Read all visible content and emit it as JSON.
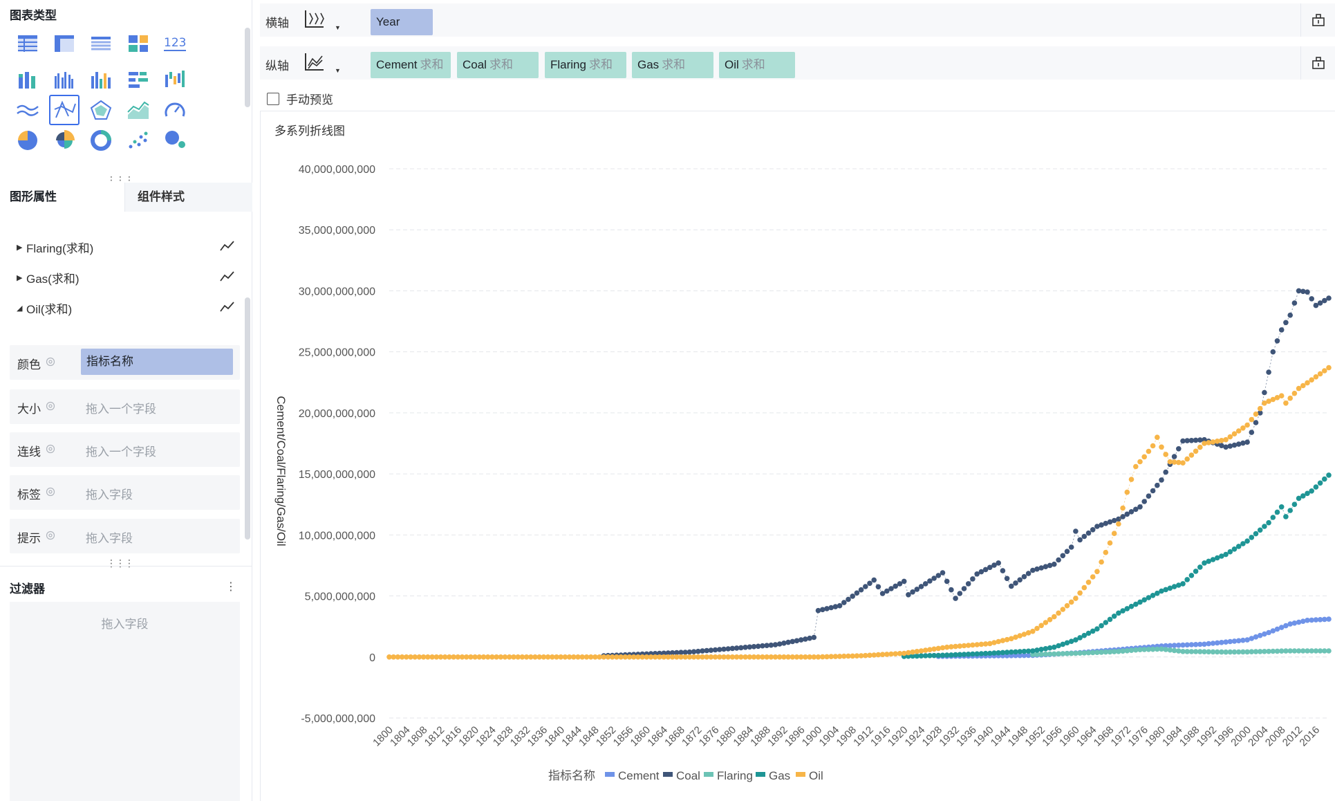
{
  "left": {
    "chart_type_title": "图表类型",
    "chart_types": [
      "table-icon",
      "cross-table-icon",
      "detail-table-icon",
      "dashboard-tiles-icon",
      "kpi-number-icon",
      "stacked-column-icon",
      "grouped-column-icon",
      "column-icon",
      "stacked-bar-icon",
      "waterfall-icon",
      "area-line-icon",
      "line-chart-icon",
      "radar-icon",
      "area-chart-icon",
      "gauge-icon",
      "pie-icon",
      "rose-pie-icon",
      "donut-icon",
      "scatter-icon",
      "bubble-icon"
    ],
    "active_type": "line-chart-icon",
    "tabs": [
      "图形属性",
      "组件样式"
    ],
    "series": [
      {
        "label": "Flaring(求和)",
        "expanded": false
      },
      {
        "label": "Gas(求和)",
        "expanded": false
      },
      {
        "label": "Oil(求和)",
        "expanded": true
      }
    ],
    "props": [
      {
        "label": "颜色",
        "value": "指标名称",
        "filled": true
      },
      {
        "label": "大小",
        "value": "拖入一个字段",
        "filled": false
      },
      {
        "label": "连线",
        "value": "拖入一个字段",
        "filled": false
      },
      {
        "label": "标签",
        "value": "拖入字段",
        "filled": false
      },
      {
        "label": "提示",
        "value": "拖入字段",
        "filled": false
      }
    ],
    "filter_title": "过滤器",
    "filter_hint": "拖入字段"
  },
  "xaxis_bar": {
    "label": "横轴",
    "chips": [
      {
        "name": "Year",
        "agg": ""
      }
    ]
  },
  "yaxis_bar": {
    "label": "纵轴",
    "chips": [
      {
        "name": "Cement",
        "agg": "求和"
      },
      {
        "name": "Coal",
        "agg": "求和"
      },
      {
        "name": "Flaring",
        "agg": "求和"
      },
      {
        "name": "Gas",
        "agg": "求和"
      },
      {
        "name": "Oil",
        "agg": "求和"
      }
    ]
  },
  "preview_label": "手动预览",
  "chart_data": {
    "type": "line",
    "title": "多系列折线图",
    "xlabel": "",
    "ylabel": "Cement/Coal/Flaring/Gas/Oil",
    "ylim": [
      -5000000000,
      40000000000
    ],
    "yticks": [
      "40,000,000,000",
      "35,000,000,000",
      "30,000,000,000",
      "25,000,000,000",
      "20,000,000,000",
      "15,000,000,000",
      "10,000,000,000",
      "5,000,000,000",
      "0",
      "-5,000,000,000"
    ],
    "ytick_values": [
      40000000000,
      35000000000,
      30000000000,
      25000000000,
      20000000000,
      15000000000,
      10000000000,
      5000000000,
      0,
      -5000000000
    ],
    "x_range": [
      1800,
      2019
    ],
    "xtick_step": 4,
    "grid": true,
    "legend_title": "指标名称",
    "legend_position": "bottom",
    "series": [
      {
        "name": "Cement",
        "color": "#6f93e8",
        "points": [
          [
            1928,
            50000000
          ],
          [
            1950,
            130000000
          ],
          [
            1960,
            330000000
          ],
          [
            1970,
            600000000
          ],
          [
            1980,
            900000000
          ],
          [
            1990,
            1050000000
          ],
          [
            2000,
            1400000000
          ],
          [
            2005,
            2000000000
          ],
          [
            2010,
            2700000000
          ],
          [
            2014,
            3000000000
          ],
          [
            2019,
            3100000000
          ]
        ]
      },
      {
        "name": "Coal",
        "color": "#3f5578",
        "points": [
          [
            1850,
            100000000
          ],
          [
            1870,
            400000000
          ],
          [
            1890,
            1000000000
          ],
          [
            1899,
            1600000000
          ],
          [
            1900,
            3800000000
          ],
          [
            1905,
            4200000000
          ],
          [
            1910,
            5500000000
          ],
          [
            1913,
            6300000000
          ],
          [
            1915,
            5200000000
          ],
          [
            1920,
            6200000000
          ],
          [
            1921,
            5100000000
          ],
          [
            1925,
            6000000000
          ],
          [
            1929,
            6900000000
          ],
          [
            1932,
            4800000000
          ],
          [
            1937,
            6800000000
          ],
          [
            1942,
            7700000000
          ],
          [
            1945,
            5800000000
          ],
          [
            1950,
            7100000000
          ],
          [
            1955,
            7600000000
          ],
          [
            1959,
            9000000000
          ],
          [
            1960,
            10300000000
          ],
          [
            1961,
            9600000000
          ],
          [
            1965,
            10700000000
          ],
          [
            1970,
            11300000000
          ],
          [
            1975,
            12300000000
          ],
          [
            1980,
            14500000000
          ],
          [
            1985,
            17700000000
          ],
          [
            1990,
            17800000000
          ],
          [
            1995,
            17200000000
          ],
          [
            2000,
            17600000000
          ],
          [
            2003,
            20000000000
          ],
          [
            2006,
            25000000000
          ],
          [
            2008,
            26800000000
          ],
          [
            2010,
            28000000000
          ],
          [
            2012,
            30000000000
          ],
          [
            2014,
            29900000000
          ],
          [
            2016,
            28800000000
          ],
          [
            2019,
            29400000000
          ]
        ]
      },
      {
        "name": "Flaring",
        "color": "#6cc3b5",
        "points": [
          [
            1950,
            200000000
          ],
          [
            1960,
            300000000
          ],
          [
            1970,
            450000000
          ],
          [
            1975,
            600000000
          ],
          [
            1980,
            650000000
          ],
          [
            1985,
            450000000
          ],
          [
            1990,
            430000000
          ],
          [
            1995,
            400000000
          ],
          [
            2000,
            420000000
          ],
          [
            2010,
            500000000
          ],
          [
            2019,
            500000000
          ]
        ]
      },
      {
        "name": "Gas",
        "color": "#1e9595",
        "points": [
          [
            1920,
            50000000
          ],
          [
            1930,
            150000000
          ],
          [
            1940,
            300000000
          ],
          [
            1950,
            500000000
          ],
          [
            1955,
            800000000
          ],
          [
            1960,
            1400000000
          ],
          [
            1965,
            2300000000
          ],
          [
            1970,
            3600000000
          ],
          [
            1975,
            4500000000
          ],
          [
            1980,
            5400000000
          ],
          [
            1985,
            6000000000
          ],
          [
            1990,
            7700000000
          ],
          [
            1995,
            8400000000
          ],
          [
            2000,
            9500000000
          ],
          [
            2005,
            11000000000
          ],
          [
            2008,
            12300000000
          ],
          [
            2009,
            11500000000
          ],
          [
            2012,
            13000000000
          ],
          [
            2015,
            13600000000
          ],
          [
            2019,
            14900000000
          ]
        ]
      },
      {
        "name": "Oil",
        "color": "#f7b548",
        "points": [
          [
            1800,
            0
          ],
          [
            1900,
            0
          ],
          [
            1910,
            100000000
          ],
          [
            1920,
            300000000
          ],
          [
            1930,
            800000000
          ],
          [
            1940,
            1100000000
          ],
          [
            1945,
            1500000000
          ],
          [
            1950,
            2100000000
          ],
          [
            1955,
            3300000000
          ],
          [
            1960,
            4800000000
          ],
          [
            1965,
            7000000000
          ],
          [
            1970,
            10900000000
          ],
          [
            1972,
            13500000000
          ],
          [
            1974,
            15600000000
          ],
          [
            1976,
            16400000000
          ],
          [
            1978,
            17300000000
          ],
          [
            1979,
            18000000000
          ],
          [
            1980,
            17200000000
          ],
          [
            1982,
            16000000000
          ],
          [
            1985,
            15900000000
          ],
          [
            1990,
            17500000000
          ],
          [
            1995,
            17800000000
          ],
          [
            2000,
            19000000000
          ],
          [
            2004,
            20800000000
          ],
          [
            2008,
            21400000000
          ],
          [
            2009,
            20800000000
          ],
          [
            2012,
            22000000000
          ],
          [
            2015,
            22700000000
          ],
          [
            2019,
            23700000000
          ]
        ]
      }
    ]
  }
}
